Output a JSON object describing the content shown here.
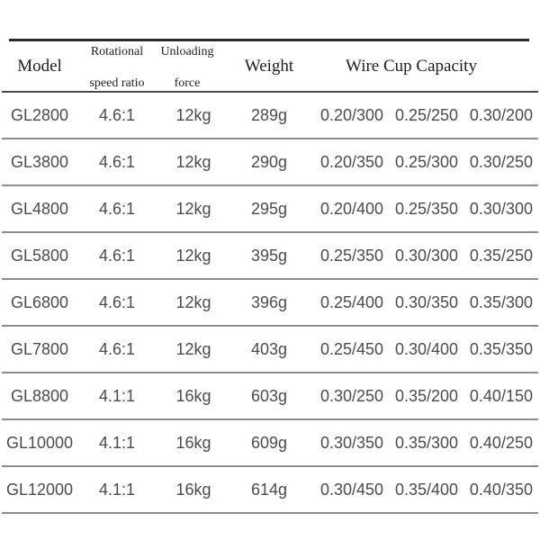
{
  "colors": {
    "header_text": "#1e1e1e",
    "body_text": "#4b4b4b",
    "rule_heavy": "#2a2a2a",
    "rule_medium": "#4a4a4a",
    "rule_light": "#8d8d8d",
    "background": "#ffffff"
  },
  "table": {
    "header": {
      "model": "Model",
      "rotational_line1": "Rotational",
      "rotational_line2": "speed ratio",
      "unloading_line1": "Unloading",
      "unloading_line2": "force",
      "weight": "Weight",
      "capacity": "Wire Cup Capacity"
    },
    "rows": [
      {
        "model": "GL2800",
        "speed_ratio": "4.6:1",
        "unloading_force": "12kg",
        "weight": "289g",
        "capacity": [
          "0.20/300",
          "0.25/250",
          "0.30/200"
        ]
      },
      {
        "model": "GL3800",
        "speed_ratio": "4.6:1",
        "unloading_force": "12kg",
        "weight": "290g",
        "capacity": [
          "0.20/350",
          "0.25/300",
          "0.30/250"
        ]
      },
      {
        "model": "GL4800",
        "speed_ratio": "4.6:1",
        "unloading_force": "12kg",
        "weight": "295g",
        "capacity": [
          "0.20/400",
          "0.25/350",
          "0.30/300"
        ]
      },
      {
        "model": "GL5800",
        "speed_ratio": "4.6:1",
        "unloading_force": "12kg",
        "weight": "395g",
        "capacity": [
          "0.25/350",
          "0.30/300",
          "0.35/250"
        ]
      },
      {
        "model": "GL6800",
        "speed_ratio": "4.6:1",
        "unloading_force": "12kg",
        "weight": "396g",
        "capacity": [
          "0.25/400",
          "0.30/350",
          "0.35/300"
        ]
      },
      {
        "model": "GL7800",
        "speed_ratio": "4.6:1",
        "unloading_force": "12kg",
        "weight": "403g",
        "capacity": [
          "0.25/450",
          "0.30/400",
          "0.35/350"
        ]
      },
      {
        "model": "GL8800",
        "speed_ratio": "4.1:1",
        "unloading_force": "16kg",
        "weight": "603g",
        "capacity": [
          "0.30/250",
          "0.35/200",
          "0.40/150"
        ]
      },
      {
        "model": "GL10000",
        "speed_ratio": "4.1:1",
        "unloading_force": "16kg",
        "weight": "609g",
        "capacity": [
          "0.30/350",
          "0.35/300",
          "0.40/250"
        ]
      },
      {
        "model": "GL12000",
        "speed_ratio": "4.1:1",
        "unloading_force": "16kg",
        "weight": "614g",
        "capacity": [
          "0.30/450",
          "0.35/400",
          "0.40/350"
        ]
      }
    ]
  }
}
